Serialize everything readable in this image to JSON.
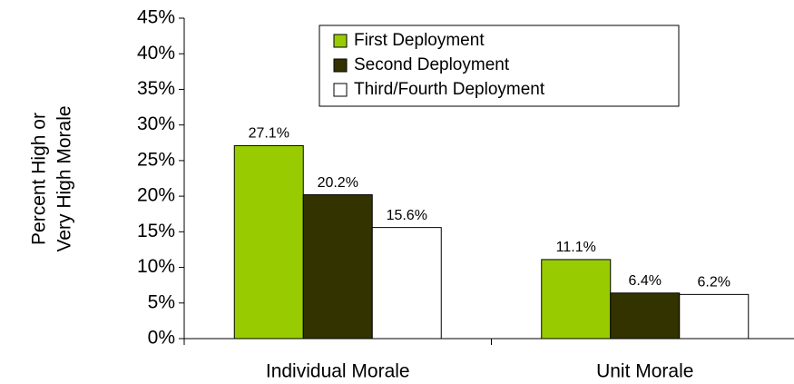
{
  "chart_data": {
    "type": "bar",
    "ylabel": [
      "Percent High or",
      "Very High Morale"
    ],
    "categories": [
      "Individual Morale",
      "Unit Morale"
    ],
    "series": [
      {
        "name": "First Deployment",
        "color": "#99cc00",
        "values": [
          27.1,
          11.1
        ],
        "value_labels": [
          "27.1%",
          "11.1%"
        ]
      },
      {
        "name": "Second Deployment",
        "color": "#333300",
        "values": [
          20.2,
          6.4
        ],
        "value_labels": [
          "20.2%",
          "6.4%"
        ]
      },
      {
        "name": "Third/Fourth Deployment",
        "color": "#ffffff",
        "values": [
          15.6,
          6.2
        ],
        "value_labels": [
          "15.6%",
          "6.2%"
        ]
      }
    ],
    "ylim": [
      0,
      45
    ],
    "yticks": [
      {
        "value": 0,
        "label": "0%"
      },
      {
        "value": 5,
        "label": "5%"
      },
      {
        "value": 10,
        "label": "10%"
      },
      {
        "value": 15,
        "label": "15%"
      },
      {
        "value": 20,
        "label": "20%"
      },
      {
        "value": 25,
        "label": "25%"
      },
      {
        "value": 30,
        "label": "30%"
      },
      {
        "value": 35,
        "label": "35%"
      },
      {
        "value": 40,
        "label": "40%"
      },
      {
        "value": 45,
        "label": "45%"
      }
    ],
    "legend": "top-right"
  }
}
